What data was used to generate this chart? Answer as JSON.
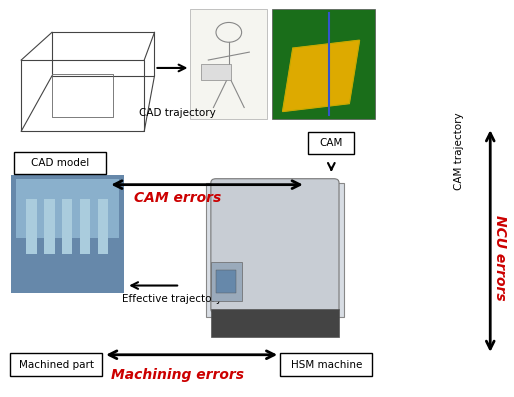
{
  "bg_color": "#ffffff",
  "elements": {
    "cad_model_label": "CAD model",
    "cam_label": "CAM",
    "cam_trajectory_label": "CAM trajectory",
    "cad_trajectory_label": "CAD trajectory",
    "effective_trajectory_label": "Effective trajectory",
    "machined_part_label": "Machined part",
    "hsm_machine_label": "HSM machine",
    "cam_errors_label": "CAM errors",
    "machining_errors_label": "Machining errors",
    "ncu_errors_label": "NCU errors"
  },
  "colors": {
    "red": "#cc0000",
    "black": "#000000",
    "white": "#ffffff"
  },
  "layout": {
    "figwidth": 5.14,
    "figheight": 3.97,
    "dpi": 100
  }
}
